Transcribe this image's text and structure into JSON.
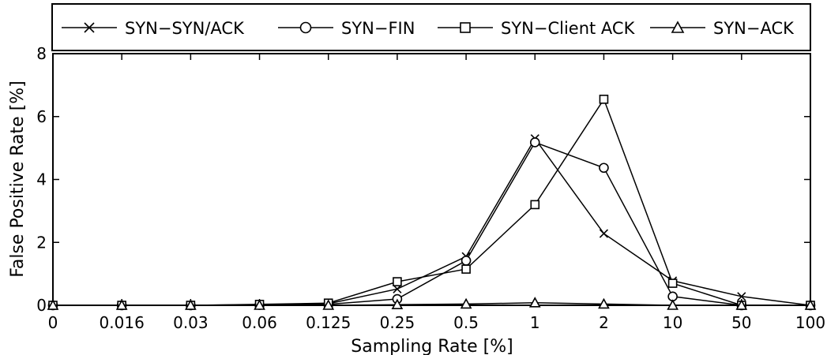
{
  "chart_data": {
    "type": "line",
    "title": "",
    "xlabel": "Sampling Rate [%]",
    "ylabel": "False Positive Rate [%]",
    "categories": [
      "0",
      "0.016",
      "0.03",
      "0.06",
      "0.125",
      "0.25",
      "0.5",
      "1",
      "2",
      "10",
      "50",
      "100"
    ],
    "ylim": [
      0,
      8
    ],
    "yticks": [
      0,
      2,
      4,
      6,
      8
    ],
    "grid": false,
    "legend_position": "top",
    "series": [
      {
        "name": "SYN−SYN/ACK",
        "marker": "x",
        "values": [
          0,
          0,
          0,
          0.02,
          0.05,
          0.52,
          1.55,
          5.3,
          2.28,
          0.78,
          0.28,
          0
        ]
      },
      {
        "name": "SYN−FIN",
        "marker": "circle",
        "values": [
          0,
          0,
          0,
          0.01,
          0.03,
          0.2,
          1.42,
          5.18,
          4.37,
          0.28,
          0,
          0
        ]
      },
      {
        "name": "SYN−Client ACK",
        "marker": "square",
        "values": [
          0,
          0,
          0,
          0.03,
          0.07,
          0.75,
          1.15,
          3.2,
          6.55,
          0.7,
          0,
          0
        ]
      },
      {
        "name": "SYN−ACK",
        "marker": "triangle",
        "values": [
          0,
          0,
          0,
          0,
          0,
          0.02,
          0.04,
          0.08,
          0.04,
          0,
          0,
          0
        ]
      }
    ]
  }
}
